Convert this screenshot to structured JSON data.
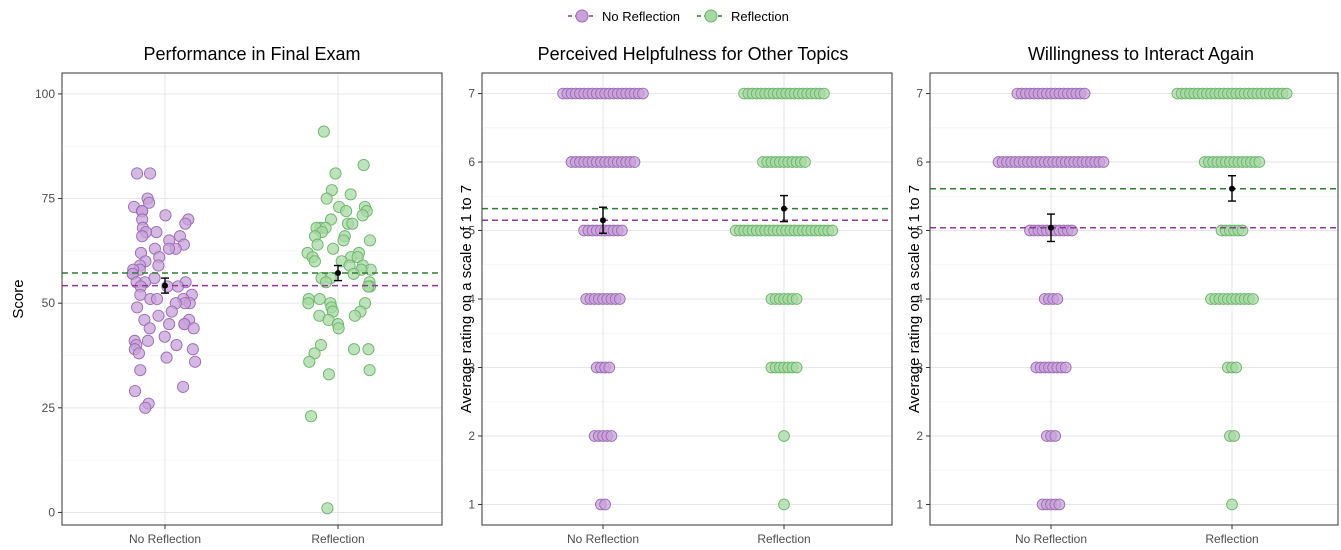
{
  "legend": {
    "items": [
      {
        "label": "No Reflection",
        "color": "#9b59b6"
      },
      {
        "label": "Reflection",
        "color": "#2e8b3e"
      }
    ]
  },
  "colors": {
    "no_reflection_fill": "#c8a2d8",
    "no_reflection_stroke": "#9b6bb5",
    "no_reflection_line": "#8e3a99",
    "reflection_fill": "#a8d8a4",
    "reflection_stroke": "#6bb56b",
    "reflection_line": "#2e7d32"
  },
  "chart_data": [
    {
      "type": "scatter",
      "title": "Performance in Final Exam",
      "ylabel": "Score",
      "xlabel": "",
      "categories": [
        "No Reflection",
        "Reflection"
      ],
      "ylim": [
        -3,
        105
      ],
      "yticks": [
        0,
        25,
        50,
        75,
        100
      ],
      "grid": true,
      "series": [
        {
          "name": "No Reflection",
          "mean": 54.2,
          "ci": [
            52.4,
            56.0
          ],
          "values": [
            81,
            81,
            75,
            74,
            73,
            72,
            72,
            71,
            70,
            70,
            69,
            68,
            67,
            67,
            66,
            66,
            65,
            64,
            63,
            63,
            63,
            62,
            61,
            60,
            59,
            59,
            58,
            58,
            57,
            57,
            56,
            55,
            55,
            55,
            54,
            54,
            54,
            52,
            52,
            51,
            51,
            51,
            50,
            50,
            50,
            49,
            48,
            47,
            46,
            46,
            45,
            45,
            45,
            44,
            44,
            42,
            41,
            41,
            40,
            40,
            39,
            39,
            38,
            37,
            36,
            34,
            30,
            29,
            26,
            25
          ]
        },
        {
          "name": "Reflection",
          "mean": 57.2,
          "ci": [
            55.4,
            59.0
          ],
          "values": [
            91,
            83,
            81,
            77,
            76,
            75,
            73,
            73,
            72,
            72,
            71,
            70,
            69,
            69,
            68,
            68,
            68,
            67,
            66,
            66,
            65,
            65,
            64,
            63,
            62,
            62,
            61,
            61,
            61,
            60,
            60,
            59,
            59,
            58,
            58,
            57,
            56,
            56,
            55,
            55,
            54,
            54,
            51,
            51,
            50,
            50,
            50,
            49,
            48,
            48,
            47,
            47,
            46,
            45,
            44,
            40,
            39,
            39,
            38,
            36,
            34,
            33,
            23,
            1
          ]
        }
      ]
    },
    {
      "type": "scatter",
      "title": "Perceived Helpfulness for Other Topics",
      "ylabel": "Average rating on a scale of 1 to 7",
      "xlabel": "",
      "categories": [
        "No Reflection",
        "Reflection"
      ],
      "ylim": [
        0.7,
        7.3
      ],
      "yticks": [
        1,
        2,
        3,
        4,
        5,
        6,
        7
      ],
      "grid": true,
      "series": [
        {
          "name": "No Reflection",
          "mean": 5.15,
          "ci": [
            4.96,
            5.34
          ],
          "counts": {
            "7": 20,
            "6": 16,
            "5": 10,
            "4": 9,
            "3": 4,
            "2": 5,
            "1": 2
          }
        },
        {
          "name": "Reflection",
          "mean": 5.32,
          "ci": [
            5.13,
            5.51
          ],
          "counts": {
            "7": 20,
            "6": 11,
            "5": 24,
            "4": 7,
            "3": 7,
            "2": 1,
            "1": 1
          }
        }
      ]
    },
    {
      "type": "scatter",
      "title": "Willingness to Interact Again",
      "ylabel": "Average rating on a scale of 1 to 7",
      "xlabel": "",
      "categories": [
        "No Reflection",
        "Reflection"
      ],
      "ylim": [
        0.7,
        7.3
      ],
      "yticks": [
        1,
        2,
        3,
        4,
        5,
        6,
        7
      ],
      "grid": true,
      "series": [
        {
          "name": "No Reflection",
          "mean": 5.04,
          "ci": [
            4.84,
            5.24
          ],
          "counts": {
            "7": 17,
            "6": 26,
            "5": 11,
            "4": 4,
            "3": 8,
            "2": 3,
            "1": 5
          }
        },
        {
          "name": "Reflection",
          "mean": 5.61,
          "ci": [
            5.43,
            5.8
          ],
          "counts": {
            "7": 27,
            "6": 14,
            "5": 6,
            "4": 11,
            "3": 3,
            "2": 2,
            "1": 1
          }
        }
      ]
    }
  ]
}
